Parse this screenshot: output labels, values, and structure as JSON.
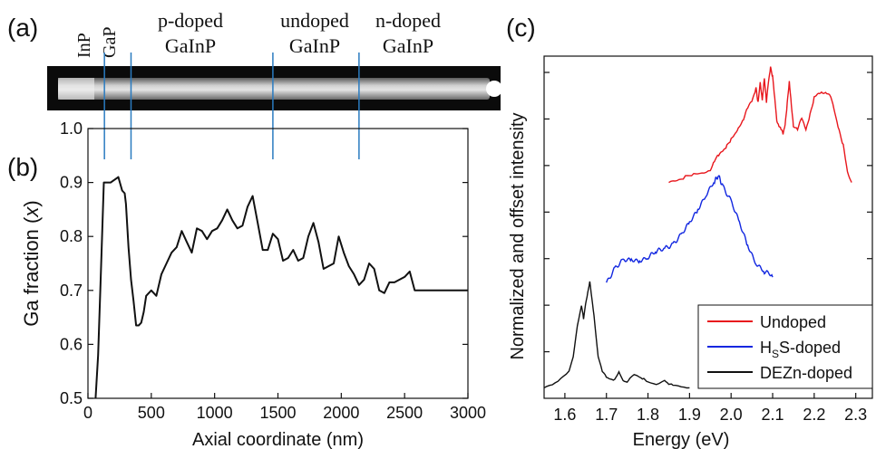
{
  "panels": {
    "a": {
      "label": "(a)",
      "regions": [
        {
          "lines": [
            "InP"
          ],
          "vertical": true
        },
        {
          "lines": [
            "GaP"
          ],
          "vertical": true
        },
        {
          "lines": [
            "p-doped",
            "GaInP"
          ]
        },
        {
          "lines": [
            "undoped",
            "GaInP"
          ]
        },
        {
          "lines": [
            "n-doped",
            "GaInP"
          ]
        }
      ]
    },
    "b": {
      "label": "(b)"
    },
    "c": {
      "label": "(c)"
    }
  },
  "colors": {
    "undoped": "#e8171d",
    "hs": "#1227e0",
    "dezn": "#111111",
    "divider": "#2a7bc0"
  },
  "chart_data": [
    {
      "panel": "(b)",
      "type": "line",
      "xlabel": "Axial coordinate (nm)",
      "ylabel_prefix": "Ga fraction (",
      "ylabel_var": "x",
      "ylabel_suffix": ")",
      "xlim": [
        0,
        3000
      ],
      "ylim": [
        0.5,
        1.0
      ],
      "xticks": [
        0,
        500,
        1000,
        1500,
        2000,
        2500,
        3000
      ],
      "yticks": [
        0.5,
        0.6,
        0.7,
        0.8,
        0.9,
        1.0
      ],
      "dividers_nm": [
        130,
        340,
        1460,
        2140
      ],
      "series": [
        {
          "x": [
            60,
            80,
            100,
            125,
            150,
            180,
            210,
            240,
            270,
            290,
            300,
            320,
            340,
            360,
            380,
            400,
            420,
            440,
            460,
            500,
            540,
            580,
            620,
            660,
            700,
            740,
            780,
            820,
            860,
            900,
            940,
            980,
            1020,
            1060,
            1100,
            1140,
            1180,
            1220,
            1260,
            1300,
            1340,
            1380,
            1420,
            1460,
            1500,
            1540,
            1580,
            1620,
            1660,
            1700,
            1740,
            1780,
            1820,
            1860,
            1900,
            1940,
            1980,
            2020,
            2060,
            2100,
            2140,
            2180,
            2220,
            2260,
            2300,
            2340,
            2380,
            2420,
            2460,
            2500,
            2540,
            2580,
            2620,
            2660,
            2700,
            2740,
            2780,
            2820,
            2860,
            2900,
            2940,
            2980,
            3000
          ],
          "y": [
            0.5,
            0.58,
            0.72,
            0.9,
            0.9,
            0.9,
            0.905,
            0.91,
            0.885,
            0.88,
            0.86,
            0.78,
            0.72,
            0.68,
            0.635,
            0.635,
            0.64,
            0.66,
            0.69,
            0.7,
            0.69,
            0.73,
            0.75,
            0.77,
            0.78,
            0.81,
            0.79,
            0.77,
            0.815,
            0.81,
            0.795,
            0.81,
            0.815,
            0.83,
            0.85,
            0.83,
            0.815,
            0.82,
            0.855,
            0.875,
            0.825,
            0.775,
            0.775,
            0.805,
            0.795,
            0.755,
            0.76,
            0.775,
            0.755,
            0.76,
            0.8,
            0.825,
            0.79,
            0.74,
            0.745,
            0.75,
            0.8,
            0.77,
            0.745,
            0.73,
            0.71,
            0.72,
            0.75,
            0.74,
            0.7,
            0.695,
            0.715,
            0.715,
            0.72,
            0.725,
            0.735,
            0.7,
            0.7,
            0.7,
            0.7,
            0.7,
            0.7,
            0.7,
            0.7,
            0.7,
            0.7,
            0.7,
            0.7
          ]
        }
      ]
    },
    {
      "panel": "(c)",
      "type": "line",
      "xlabel": "Energy (eV)",
      "ylabel": "Normalized and offset intensity",
      "xlim": [
        1.55,
        2.34
      ],
      "xticks": [
        1.6,
        1.7,
        1.8,
        1.9,
        2.0,
        2.1,
        2.2,
        2.3
      ],
      "yaxis_ticks_count": 7,
      "legend_position": "lower-right",
      "series": [
        {
          "name": "Undoped",
          "color": "#e8171d",
          "x": [
            1.85,
            1.87,
            1.89,
            1.91,
            1.93,
            1.95,
            1.96,
            1.97,
            1.98,
            1.99,
            2.0,
            2.01,
            2.02,
            2.03,
            2.04,
            2.05,
            2.06,
            2.065,
            2.07,
            2.075,
            2.08,
            2.085,
            2.09,
            2.095,
            2.1,
            2.105,
            2.11,
            2.115,
            2.12,
            2.125,
            2.13,
            2.135,
            2.14,
            2.145,
            2.15,
            2.16,
            2.17,
            2.18,
            2.19,
            2.2,
            2.21,
            2.22,
            2.23,
            2.24,
            2.25,
            2.26,
            2.27,
            2.28,
            2.29
          ],
          "y": [
            1.95,
            1.97,
            2.0,
            2.02,
            2.05,
            2.08,
            2.15,
            2.2,
            2.25,
            2.3,
            2.35,
            2.42,
            2.5,
            2.55,
            2.65,
            2.72,
            2.85,
            2.7,
            2.9,
            2.75,
            2.95,
            2.7,
            2.9,
            3.05,
            2.95,
            2.75,
            2.55,
            2.5,
            2.45,
            2.4,
            2.5,
            2.7,
            2.9,
            2.7,
            2.5,
            2.45,
            2.55,
            2.45,
            2.6,
            2.75,
            2.8,
            2.82,
            2.8,
            2.75,
            2.6,
            2.45,
            2.3,
            2.05,
            1.95
          ]
        },
        {
          "name": "HSS-doped",
          "color": "#1227e0",
          "x": [
            1.7,
            1.72,
            1.74,
            1.76,
            1.78,
            1.8,
            1.82,
            1.84,
            1.86,
            1.88,
            1.9,
            1.92,
            1.94,
            1.96,
            1.97,
            1.98,
            2.0,
            2.02,
            2.04,
            2.06,
            2.08,
            2.1
          ],
          "y": [
            1.0,
            1.15,
            1.2,
            1.2,
            1.22,
            1.25,
            1.28,
            1.32,
            1.38,
            1.45,
            1.55,
            1.7,
            1.85,
            1.95,
            2.0,
            1.93,
            1.78,
            1.55,
            1.35,
            1.2,
            1.1,
            1.05
          ]
        },
        {
          "name": "DEZn-doped",
          "color": "#111111",
          "x": [
            1.55,
            1.57,
            1.59,
            1.61,
            1.62,
            1.63,
            1.64,
            1.645,
            1.65,
            1.655,
            1.66,
            1.665,
            1.67,
            1.68,
            1.69,
            1.7,
            1.71,
            1.72,
            1.73,
            1.74,
            1.75,
            1.76,
            1.77,
            1.78,
            1.79,
            1.8,
            1.82,
            1.84,
            1.85,
            1.86,
            1.88,
            1.9
          ],
          "y": [
            0.0,
            0.03,
            0.08,
            0.15,
            0.3,
            0.6,
            0.78,
            0.65,
            0.8,
            0.9,
            1.0,
            0.85,
            0.7,
            0.3,
            0.15,
            0.1,
            0.08,
            0.07,
            0.15,
            0.08,
            0.06,
            0.1,
            0.12,
            0.1,
            0.08,
            0.05,
            0.04,
            0.08,
            0.03,
            0.02,
            0.01,
            0.0
          ]
        }
      ]
    }
  ]
}
